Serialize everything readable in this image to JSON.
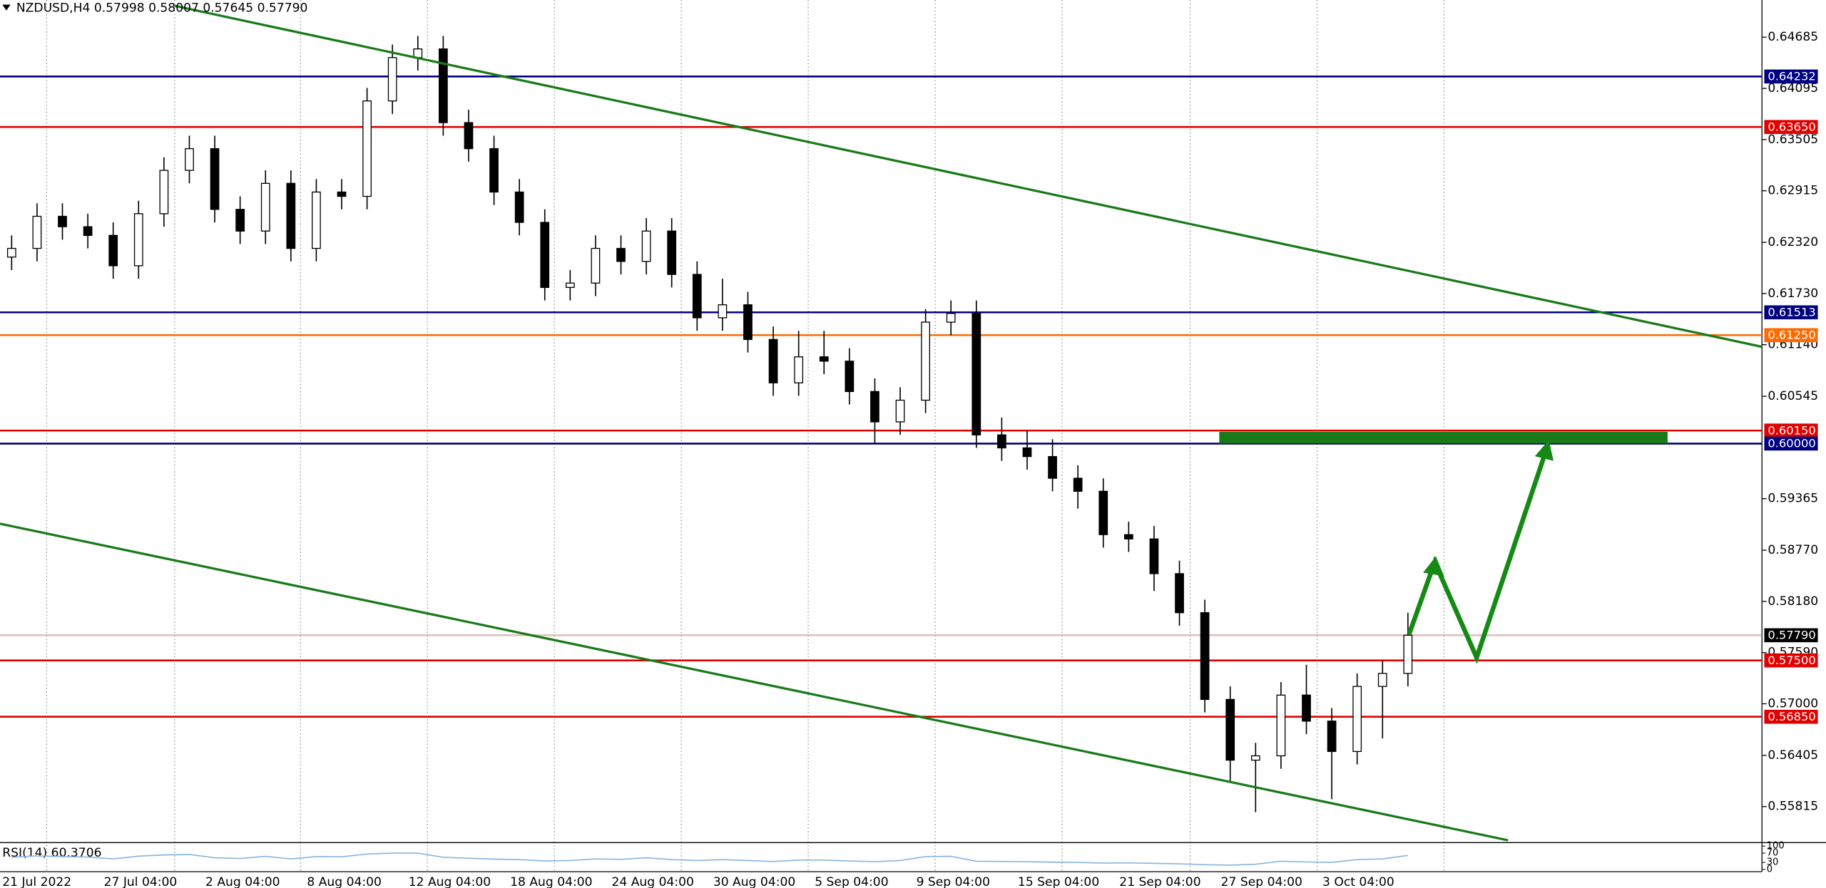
{
  "chart_data": {
    "type": "candlestick",
    "title": "NZDUSD,H4  0.57998 0.58007 0.57645 0.57790",
    "categories": [
      "21 Jul 2022",
      "27 Jul 04:00",
      "2 Aug 04:00",
      "8 Aug 04:00",
      "12 Aug 04:00",
      "18 Aug 04:00",
      "24 Aug 04:00",
      "30 Aug 04:00",
      "5 Sep 04:00",
      "9 Sep 04:00",
      "15 Sep 04:00",
      "21 Sep 04:00",
      "27 Sep 04:00",
      "3 Oct 04:00"
    ],
    "open": [
      0.6215,
      0.6225,
      0.6262,
      0.625,
      0.624,
      0.6205,
      0.6265,
      0.6315,
      0.634,
      0.627,
      0.6245,
      0.63,
      0.6225,
      0.629,
      0.6285,
      0.6395,
      0.6445,
      0.6455,
      0.637,
      0.634,
      0.629,
      0.6255,
      0.618,
      0.6185,
      0.6225,
      0.621,
      0.6245,
      0.6195,
      0.6145,
      0.616,
      0.612,
      0.607,
      0.61,
      0.6095,
      0.606,
      0.6025,
      0.605,
      0.614,
      0.615,
      0.601,
      0.5995,
      0.5985,
      0.596,
      0.5945,
      0.5895,
      0.589,
      0.585,
      0.5805,
      0.5705,
      0.5635,
      0.564,
      0.571,
      0.568,
      0.5645,
      0.572,
      0.5735
    ],
    "high": [
      0.624,
      0.6277,
      0.6277,
      0.6265,
      0.6255,
      0.628,
      0.633,
      0.6355,
      0.6355,
      0.6285,
      0.6315,
      0.6315,
      0.6305,
      0.6305,
      0.641,
      0.646,
      0.647,
      0.647,
      0.6385,
      0.6355,
      0.6305,
      0.627,
      0.62,
      0.624,
      0.624,
      0.626,
      0.626,
      0.621,
      0.619,
      0.6175,
      0.6135,
      0.613,
      0.613,
      0.611,
      0.6075,
      0.6065,
      0.6155,
      0.6165,
      0.6165,
      0.603,
      0.6015,
      0.6005,
      0.5975,
      0.596,
      0.591,
      0.5905,
      0.5865,
      0.582,
      0.572,
      0.5655,
      0.5725,
      0.5745,
      0.5695,
      0.5735,
      0.575,
      0.5805
    ],
    "low": [
      0.62,
      0.621,
      0.6235,
      0.6225,
      0.619,
      0.619,
      0.625,
      0.63,
      0.6255,
      0.623,
      0.623,
      0.621,
      0.621,
      0.627,
      0.627,
      0.638,
      0.643,
      0.6355,
      0.6325,
      0.6275,
      0.624,
      0.6165,
      0.6165,
      0.617,
      0.6195,
      0.6195,
      0.618,
      0.613,
      0.613,
      0.6105,
      0.6055,
      0.6055,
      0.608,
      0.6045,
      0.6,
      0.601,
      0.6035,
      0.6125,
      0.5995,
      0.598,
      0.597,
      0.5945,
      0.5925,
      0.588,
      0.5875,
      0.583,
      0.579,
      0.569,
      0.561,
      0.5575,
      0.5625,
      0.5665,
      0.559,
      0.563,
      0.566,
      0.572
    ],
    "close": [
      0.6225,
      0.6262,
      0.625,
      0.624,
      0.6205,
      0.6265,
      0.6315,
      0.634,
      0.627,
      0.6245,
      0.63,
      0.6225,
      0.629,
      0.6285,
      0.6395,
      0.6445,
      0.6455,
      0.637,
      0.634,
      0.629,
      0.6255,
      0.618,
      0.6185,
      0.6225,
      0.621,
      0.6245,
      0.6195,
      0.6145,
      0.616,
      0.612,
      0.607,
      0.61,
      0.6095,
      0.606,
      0.6025,
      0.605,
      0.614,
      0.615,
      0.601,
      0.5995,
      0.5985,
      0.596,
      0.5945,
      0.5895,
      0.589,
      0.585,
      0.5805,
      0.5705,
      0.5635,
      0.564,
      0.571,
      0.568,
      0.5645,
      0.572,
      0.5735,
      0.5779
    ],
    "ylim": [
      0.55426,
      0.65114
    ],
    "yticks": [
      {
        "value": 0.64685,
        "label": "0.64685"
      },
      {
        "value": 0.64095,
        "label": "0.64095"
      },
      {
        "value": 0.63505,
        "label": "0.63505"
      },
      {
        "value": 0.62915,
        "label": "0.62915"
      },
      {
        "value": 0.6232,
        "label": "0.62320"
      },
      {
        "value": 0.6173,
        "label": "0.61730"
      },
      {
        "value": 0.6114,
        "label": "0.61140"
      },
      {
        "value": 0.60545,
        "label": "0.60545"
      },
      {
        "value": 0.59365,
        "label": "0.59365"
      },
      {
        "value": 0.5877,
        "label": "0.58770"
      },
      {
        "value": 0.5818,
        "label": "0.58180"
      },
      {
        "value": 0.5759,
        "label": "0.57590"
      },
      {
        "value": 0.57,
        "label": "0.57000"
      },
      {
        "value": 0.56405,
        "label": "0.56405"
      },
      {
        "value": 0.55815,
        "label": "0.55815"
      }
    ],
    "levels": [
      {
        "value": 0.64232,
        "label": "0.64232",
        "color": "#000080"
      },
      {
        "value": 0.6365,
        "label": "0.63650",
        "color": "#e00000"
      },
      {
        "value": 0.61513,
        "label": "0.61513",
        "color": "#000080"
      },
      {
        "value": 0.6125,
        "label": "0.61250",
        "color": "#ff6a00"
      },
      {
        "value": 0.6015,
        "label": "0.60150",
        "color": "#e00000"
      },
      {
        "value": 0.6,
        "label": "0.60000",
        "color": "#000080"
      },
      {
        "value": 0.575,
        "label": "0.57500",
        "color": "#e00000"
      },
      {
        "value": 0.5685,
        "label": "0.56850",
        "color": "#e00000"
      }
    ],
    "last_price": {
      "value": 0.5779,
      "label": "0.57790"
    },
    "rsi": {
      "title": "RSI(14) 60.3706",
      "color": "#87b4e0",
      "ylim": [
        0,
        100
      ],
      "yticks": [
        0,
        30,
        70,
        100
      ],
      "values": [
        52,
        58,
        55,
        53,
        45,
        57,
        62,
        64,
        50,
        47,
        56,
        45,
        55,
        54,
        66,
        70,
        70,
        52,
        48,
        44,
        42,
        36,
        38,
        45,
        43,
        50,
        42,
        38,
        42,
        38,
        34,
        40,
        40,
        36,
        33,
        38,
        55,
        56,
        35,
        34,
        33,
        31,
        30,
        27,
        28,
        26,
        24,
        20,
        18,
        22,
        35,
        32,
        30,
        42,
        45,
        60
      ]
    }
  }
}
